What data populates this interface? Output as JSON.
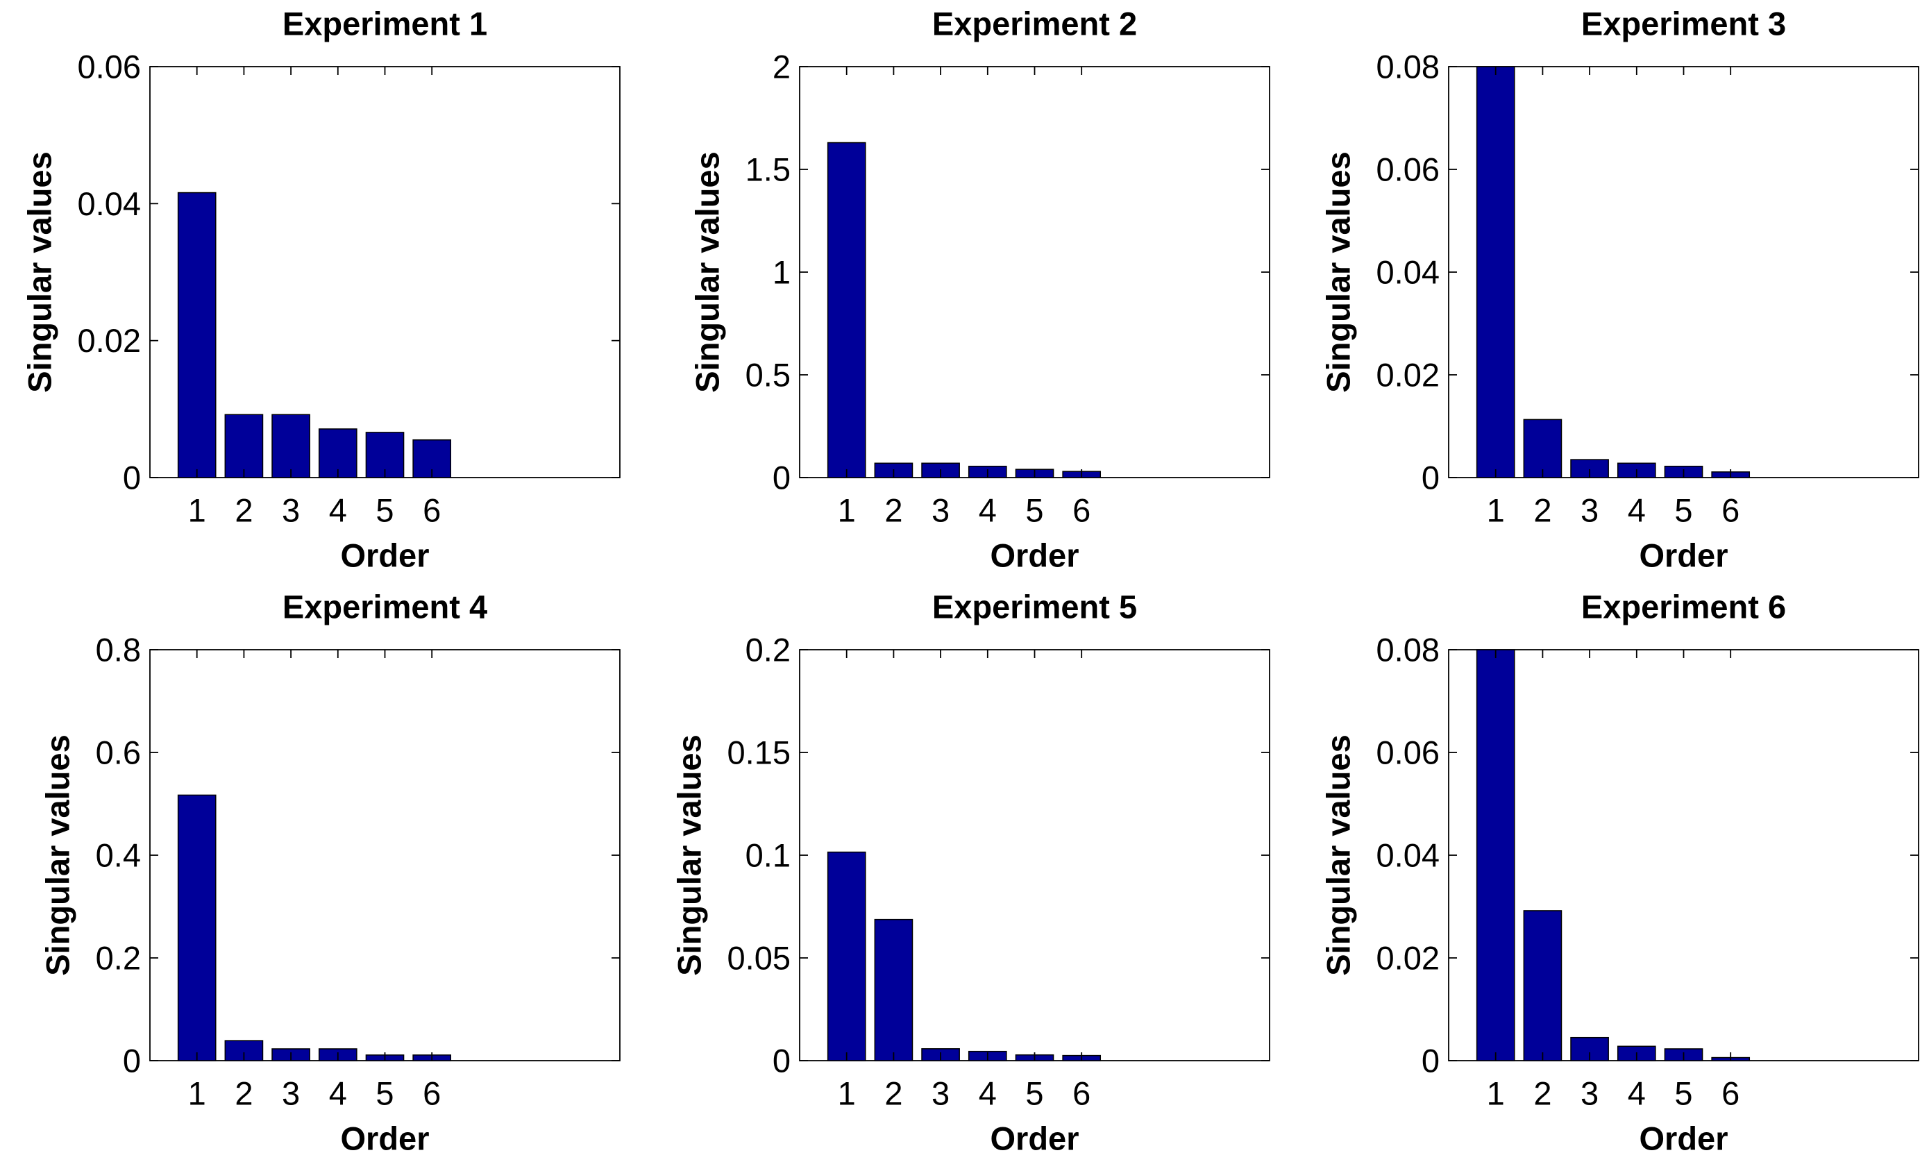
{
  "colors": {
    "bar_fill": "#000099",
    "bar_edge": "#000000",
    "axes": "#000000",
    "background": "#ffffff"
  },
  "chart_data": [
    {
      "type": "bar",
      "title": "Experiment 1",
      "xlabel": "Order",
      "ylabel": "Singular values",
      "categories": [
        "1",
        "2",
        "3",
        "4",
        "5",
        "6"
      ],
      "values": [
        0.0416,
        0.0092,
        0.0092,
        0.0071,
        0.0066,
        0.0055
      ],
      "xlim": [
        0,
        10
      ],
      "ylim": [
        0,
        0.06
      ],
      "yticks": [
        0,
        0.02,
        0.04,
        0.06
      ],
      "ytick_labels": [
        "0",
        "0.02",
        "0.04",
        "0.06"
      ],
      "grid": false,
      "legend": "none"
    },
    {
      "type": "bar",
      "title": "Experiment 2",
      "xlabel": "Order",
      "ylabel": "Singular values",
      "categories": [
        "1",
        "2",
        "3",
        "4",
        "5",
        "6"
      ],
      "values": [
        1.63,
        0.07,
        0.07,
        0.055,
        0.04,
        0.03
      ],
      "xlim": [
        0,
        10
      ],
      "ylim": [
        0,
        2
      ],
      "yticks": [
        0,
        0.5,
        1,
        1.5,
        2
      ],
      "ytick_labels": [
        "0",
        "0.5",
        "1",
        "1.5",
        "2"
      ],
      "grid": false,
      "legend": "none"
    },
    {
      "type": "bar",
      "title": "Experiment 3",
      "xlabel": "Order",
      "ylabel": "Singular values",
      "categories": [
        "1",
        "2",
        "3",
        "4",
        "5",
        "6"
      ],
      "values": [
        0.08,
        0.0113,
        0.0035,
        0.0028,
        0.0022,
        0.0011
      ],
      "xlim": [
        0,
        10
      ],
      "ylim": [
        0,
        0.08
      ],
      "yticks": [
        0,
        0.02,
        0.04,
        0.06,
        0.08
      ],
      "ytick_labels": [
        "0",
        "0.02",
        "0.04",
        "0.06",
        "0.08"
      ],
      "grid": false,
      "legend": "none"
    },
    {
      "type": "bar",
      "title": "Experiment 4",
      "xlabel": "Order",
      "ylabel": "Singular values",
      "categories": [
        "1",
        "2",
        "3",
        "4",
        "5",
        "6"
      ],
      "values": [
        0.517,
        0.039,
        0.023,
        0.023,
        0.011,
        0.011
      ],
      "xlim": [
        0,
        10
      ],
      "ylim": [
        0,
        0.8
      ],
      "yticks": [
        0,
        0.2,
        0.4,
        0.6,
        0.8
      ],
      "ytick_labels": [
        "0",
        "0.2",
        "0.4",
        "0.6",
        "0.8"
      ],
      "grid": false,
      "legend": "none"
    },
    {
      "type": "bar",
      "title": "Experiment 5",
      "xlabel": "Order",
      "ylabel": "Singular values",
      "categories": [
        "1",
        "2",
        "3",
        "4",
        "5",
        "6"
      ],
      "values": [
        0.1015,
        0.0687,
        0.0058,
        0.0045,
        0.0028,
        0.0025
      ],
      "xlim": [
        0,
        10
      ],
      "ylim": [
        0,
        0.2
      ],
      "yticks": [
        0,
        0.05,
        0.1,
        0.15,
        0.2
      ],
      "ytick_labels": [
        "0",
        "0.05",
        "0.1",
        "0.15",
        "0.2"
      ],
      "grid": false,
      "legend": "none"
    },
    {
      "type": "bar",
      "title": "Experiment 6",
      "xlabel": "Order",
      "ylabel": "Singular values",
      "categories": [
        "1",
        "2",
        "3",
        "4",
        "5",
        "6"
      ],
      "values": [
        0.08,
        0.0292,
        0.0045,
        0.0028,
        0.0023,
        0.0006
      ],
      "xlim": [
        0,
        10
      ],
      "ylim": [
        0,
        0.08
      ],
      "yticks": [
        0,
        0.02,
        0.04,
        0.06,
        0.08
      ],
      "ytick_labels": [
        "0",
        "0.02",
        "0.04",
        "0.06",
        "0.08"
      ],
      "grid": false,
      "legend": "none"
    }
  ]
}
